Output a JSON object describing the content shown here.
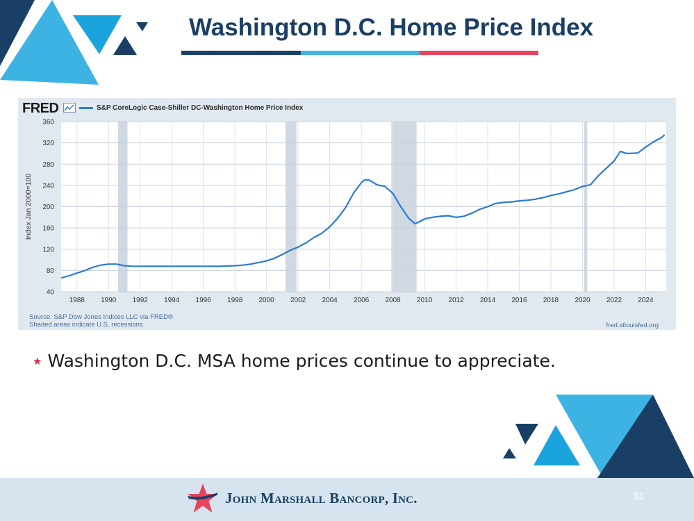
{
  "slide": {
    "title": "Washington D.C. Home Price Index",
    "bullet": "Washington D.C. MSA home prices continue to appreciate.",
    "company": "John Marshall Bancorp, Inc.",
    "page_number": "31"
  },
  "colors": {
    "navy": "#1a3f66",
    "sky_blue": "#3db3e3",
    "red": "#e8425e",
    "line_blue": "#2a7bd4",
    "panel_bg": "#e1e9f0",
    "recession_shade": "#d0d9e1"
  },
  "fred": {
    "logo": "FRED",
    "source": "Source: S&P Dow Jones Indices LLC via FRED®",
    "shaded_note": "Shaded areas indicate U.S. recessions.",
    "url": "fred.stlouisfed.org"
  },
  "chart_data": {
    "type": "line",
    "title": "",
    "xlabel": "",
    "ylabel": "Index Jan 2000=100",
    "xlim": [
      1987,
      2025.3
    ],
    "ylim": [
      40,
      360
    ],
    "y_ticks": [
      40,
      80,
      120,
      160,
      200,
      240,
      280,
      320,
      360
    ],
    "x_ticks": [
      1988,
      1990,
      1992,
      1994,
      1996,
      1998,
      2000,
      2002,
      2004,
      2006,
      2008,
      2010,
      2012,
      2014,
      2016,
      2018,
      2020,
      2022,
      2024
    ],
    "grid": true,
    "legend_position": "top-left",
    "recessions": [
      [
        1990.6,
        1991.2
      ],
      [
        2001.2,
        2001.9
      ],
      [
        2007.9,
        2009.5
      ],
      [
        2020.1,
        2020.3
      ]
    ],
    "series": [
      {
        "name": "S&P CoreLogic Case-Shiller DC-Washington Home Price Index",
        "x": [
          1987.0,
          1987.5,
          1988.0,
          1988.5,
          1989.0,
          1989.5,
          1990.0,
          1990.5,
          1991.0,
          1991.5,
          1992.0,
          1993.0,
          1994.0,
          1995.0,
          1996.0,
          1997.0,
          1998.0,
          1998.5,
          1999.0,
          1999.5,
          2000.0,
          2000.5,
          2001.0,
          2001.5,
          2002.0,
          2002.5,
          2003.0,
          2003.5,
          2004.0,
          2004.5,
          2005.0,
          2005.5,
          2006.0,
          2006.2,
          2006.5,
          2007.0,
          2007.5,
          2008.0,
          2008.5,
          2009.0,
          2009.4,
          2009.7,
          2010.0,
          2010.5,
          2011.0,
          2011.5,
          2012.0,
          2012.5,
          2013.0,
          2013.5,
          2014.0,
          2014.5,
          2015.0,
          2015.5,
          2016.0,
          2016.5,
          2017.0,
          2017.5,
          2018.0,
          2018.5,
          2019.0,
          2019.5,
          2020.0,
          2020.5,
          2021.0,
          2021.5,
          2022.0,
          2022.4,
          2022.8,
          2023.0,
          2023.5,
          2024.0,
          2024.5,
          2025.0,
          2025.2
        ],
        "values": [
          66,
          70,
          75,
          80,
          86,
          90,
          92,
          92,
          89,
          88,
          88,
          88,
          88,
          88,
          88,
          88,
          89,
          90,
          92,
          95,
          98,
          103,
          110,
          118,
          124,
          132,
          142,
          150,
          162,
          178,
          198,
          225,
          245,
          250,
          250,
          241,
          238,
          225,
          200,
          178,
          168,
          172,
          177,
          180,
          182,
          183,
          180,
          182,
          188,
          195,
          200,
          206,
          208,
          209,
          211,
          212,
          214,
          217,
          221,
          224,
          228,
          232,
          238,
          241,
          258,
          272,
          286,
          304,
          300,
          300,
          301,
          312,
          322,
          330,
          335
        ]
      }
    ]
  }
}
